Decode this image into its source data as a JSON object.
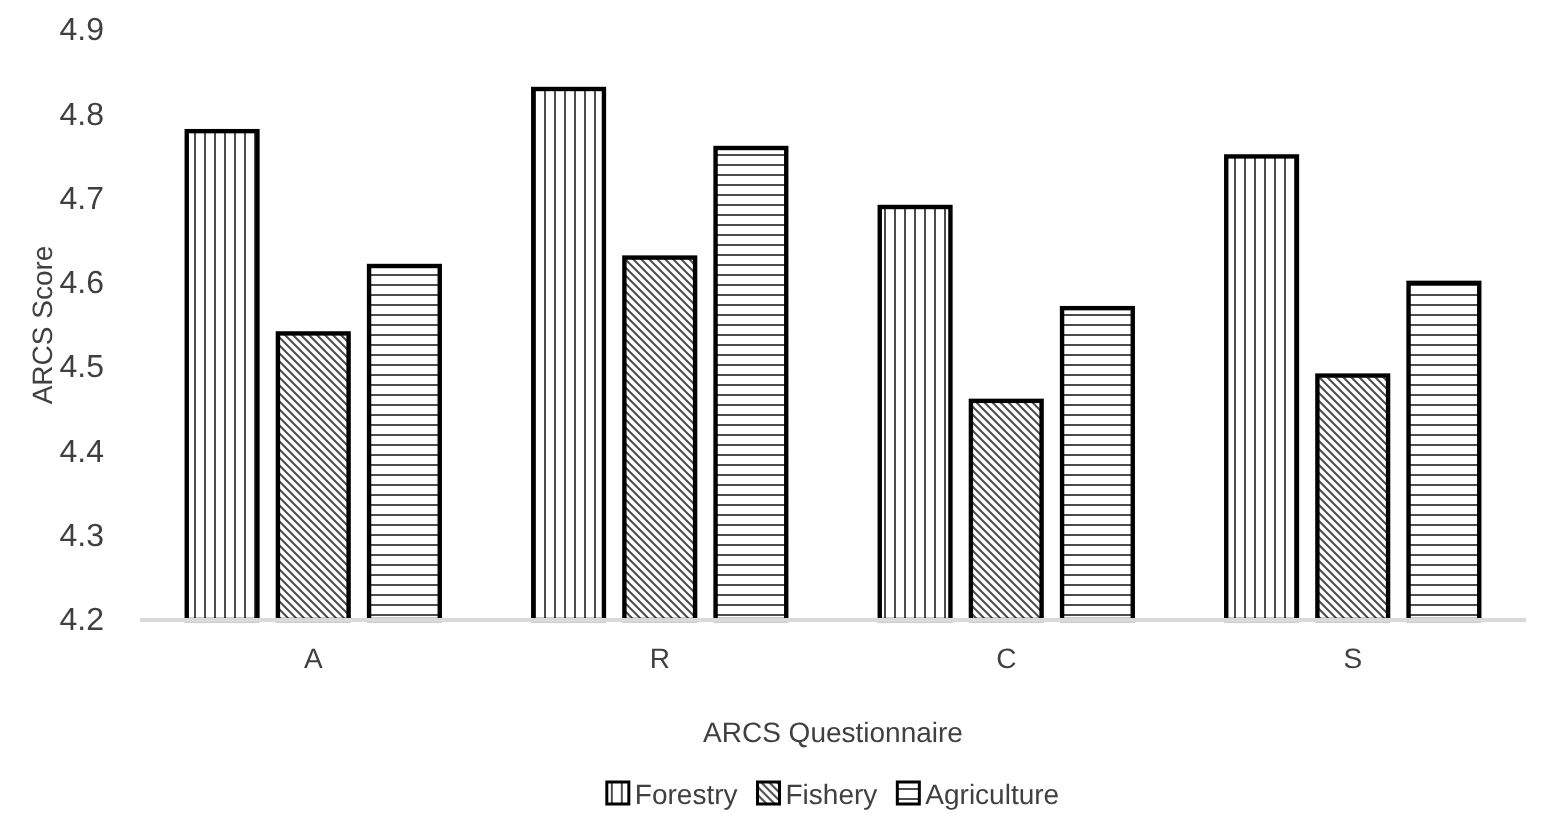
{
  "chart_data": {
    "type": "bar",
    "xlabel": "ARCS Questionnaire",
    "ylabel": "ARCS Score",
    "categories": [
      "A",
      "R",
      "C",
      "S"
    ],
    "series": [
      {
        "name": "Forestry",
        "color": "#000000",
        "values": [
          4.78,
          4.83,
          4.69,
          4.75
        ]
      },
      {
        "name": "Fishery",
        "color": "#000000",
        "values": [
          4.54,
          4.63,
          4.46,
          4.49
        ]
      },
      {
        "name": "Agriculture",
        "color": "#000000",
        "values": [
          4.62,
          4.76,
          4.57,
          4.6
        ]
      }
    ],
    "ylim": [
      4.2,
      4.9
    ],
    "yticks": [
      4.2,
      4.3,
      4.4,
      4.5,
      4.6,
      4.7,
      4.8,
      4.9
    ],
    "grid": false,
    "legend": "bottom"
  }
}
